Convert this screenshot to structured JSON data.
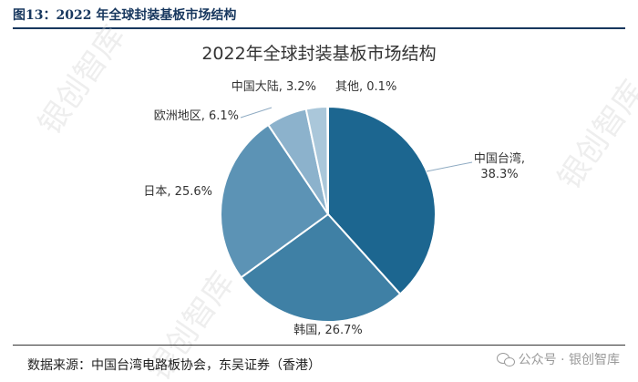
{
  "figure": {
    "caption": "图13：2022 年全球封装基板市场结构",
    "source": "数据来源：中国台湾电路板协会，东吴证券（香港）"
  },
  "watermark": {
    "text": "银创智库",
    "brand": "公众号 · 银创智库"
  },
  "chart_data": {
    "type": "pie",
    "title": "2022年全球封装基板市场结构",
    "slices": [
      {
        "label": "中国台湾",
        "value": 38.3,
        "display": "中国台湾,\n38.3%",
        "color": "#1c6690"
      },
      {
        "label": "韩国",
        "value": 26.7,
        "display": "韩国, 26.7%",
        "color": "#3f80a5"
      },
      {
        "label": "日本",
        "value": 25.6,
        "display": "日本, 25.6%",
        "color": "#5c93b5"
      },
      {
        "label": "欧洲地区",
        "value": 6.1,
        "display": "欧洲地区, 6.1%",
        "color": "#8cb2cc"
      },
      {
        "label": "中国大陆",
        "value": 3.2,
        "display": "中国大陆, 3.2%",
        "color": "#aac7da"
      },
      {
        "label": "其他",
        "value": 0.1,
        "display": "其他, 0.1%",
        "color": "#c9dce8"
      }
    ],
    "start_angle_deg": 0,
    "direction": "clockwise",
    "legend": "none"
  }
}
